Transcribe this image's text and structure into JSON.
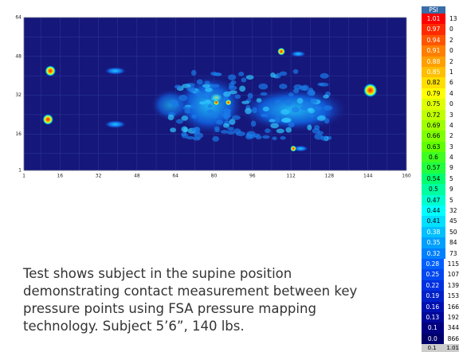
{
  "map": {
    "x_ticks": [
      "1",
      "16",
      "32",
      "48",
      "64",
      "80",
      "96",
      "112",
      "128",
      "144",
      "160"
    ],
    "y_ticks": [
      "64",
      "48",
      "32",
      "16",
      "1"
    ]
  },
  "legend": {
    "header": "PSI",
    "rows": [
      [
        "1.01",
        "13"
      ],
      [
        "0.97",
        "0"
      ],
      [
        "0.94",
        "2"
      ],
      [
        "0.91",
        "0"
      ],
      [
        "0.88",
        "2"
      ],
      [
        "0.85",
        "1"
      ],
      [
        "0.82",
        "6"
      ],
      [
        "0.79",
        "4"
      ],
      [
        "0.75",
        "0"
      ],
      [
        "0.72",
        "3"
      ],
      [
        "0.69",
        "4"
      ],
      [
        "0.66",
        "2"
      ],
      [
        "0.63",
        "3"
      ],
      [
        "0.6",
        "4"
      ],
      [
        "0.57",
        "9"
      ],
      [
        "0.54",
        "5"
      ],
      [
        "0.5",
        "9"
      ],
      [
        "0.47",
        "5"
      ],
      [
        "0.44",
        "32"
      ],
      [
        "0.41",
        "45"
      ],
      [
        "0.38",
        "50"
      ],
      [
        "0.35",
        "84"
      ],
      [
        "0.32",
        "73"
      ],
      [
        "0.28",
        "115"
      ],
      [
        "0.25",
        "107"
      ],
      [
        "0.22",
        "139"
      ],
      [
        "0.19",
        "153"
      ],
      [
        "0.16",
        "166"
      ],
      [
        "0.13",
        "192"
      ],
      [
        "0.1",
        "344"
      ],
      [
        "0.0",
        "866"
      ]
    ],
    "footer": [
      "0.1",
      "1.01"
    ]
  },
  "caption": {
    "lines": [
      "Test shows subject in the supine position",
      "demonstrating contact measurement between key",
      "pressure points using FSA pressure mapping",
      "technology. Subject 5’6”, 140 lbs."
    ]
  }
}
